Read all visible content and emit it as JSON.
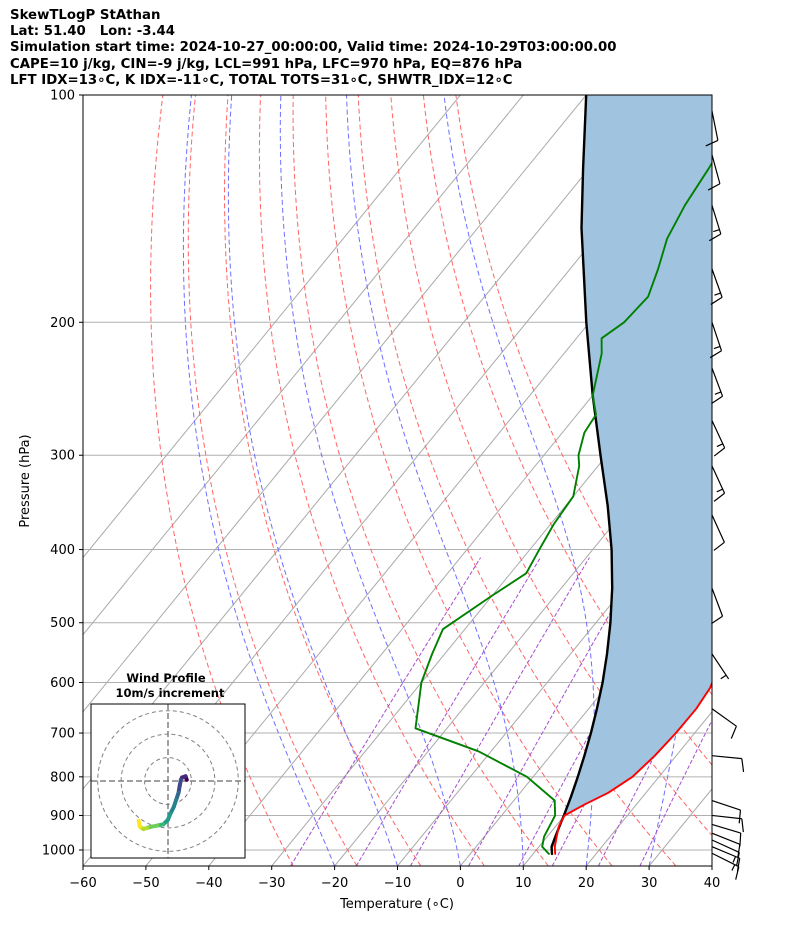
{
  "header": {
    "line1": "SkewTLogP StAthan",
    "line2": "Lat: 51.40   Lon: -3.44",
    "line3": "Simulation start time: 2024-10-27_00:00:00, Valid time: 2024-10-29T03:00:00.00",
    "line4": "CAPE=10 j/kg, CIN=-9 j/kg, LCL=991 hPa, LFC=970 hPa, EQ=876 hPa",
    "line5": "LFT IDX=13∘C, K IDX=-11∘C, TOTAL TOTS=31∘C, SHWTR_IDX=12∘C"
  },
  "chart_data": [
    {
      "type": "line",
      "name": "skew-t-log-p",
      "xlabel": "Temperature (∘C)",
      "ylabel": "Pressure (hPa)",
      "xlim": [
        -60,
        40
      ],
      "ylim": [
        1050,
        100
      ],
      "y_scale": "log",
      "grid": true,
      "x_ticks": [
        "−60",
        "−50",
        "−40",
        "−30",
        "−20",
        "−10",
        "0",
        "10",
        "20",
        "30",
        "40"
      ],
      "y_ticks": [
        "100",
        "200",
        "300",
        "400",
        "500",
        "600",
        "700",
        "800",
        "900",
        "1000"
      ],
      "temperature": [
        {
          "p": 1012,
          "t": 13.5
        },
        {
          "p": 990,
          "t": 12.5
        },
        {
          "p": 960,
          "t": 11.5
        },
        {
          "p": 930,
          "t": 10.5
        },
        {
          "p": 900,
          "t": 10.0
        },
        {
          "p": 870,
          "t": 11.8
        },
        {
          "p": 840,
          "t": 14.0
        },
        {
          "p": 800,
          "t": 15.8
        },
        {
          "p": 750,
          "t": 16.6
        },
        {
          "p": 700,
          "t": 17.0
        },
        {
          "p": 650,
          "t": 17.1
        },
        {
          "p": 610,
          "t": 16.6
        },
        {
          "p": 580,
          "t": 15.5
        },
        {
          "p": 540,
          "t": 13.0
        },
        {
          "p": 500,
          "t": 10.0
        },
        {
          "p": 450,
          "t": 6.5
        },
        {
          "p": 400,
          "t": 3.0
        },
        {
          "p": 350,
          "t": -1.0
        },
        {
          "p": 320,
          "t": -4.5
        },
        {
          "p": 300,
          "t": -7.5
        },
        {
          "p": 280,
          "t": -10.5
        },
        {
          "p": 260,
          "t": -13.5
        },
        {
          "p": 240,
          "t": -16.5
        },
        {
          "p": 220,
          "t": -20.5
        },
        {
          "p": 200,
          "t": -24.5
        },
        {
          "p": 185,
          "t": -28.5
        },
        {
          "p": 170,
          "t": -30.5
        },
        {
          "p": 150,
          "t": -33.5
        },
        {
          "p": 130,
          "t": -36.5
        },
        {
          "p": 115,
          "t": -39.0
        },
        {
          "p": 100,
          "t": -42.5
        }
      ],
      "dewpoint": [
        {
          "p": 1012,
          "t": 12.5
        },
        {
          "p": 990,
          "t": 10.5
        },
        {
          "p": 960,
          "t": 9.5
        },
        {
          "p": 930,
          "t": 9.0
        },
        {
          "p": 900,
          "t": 8.5
        },
        {
          "p": 860,
          "t": 6.5
        },
        {
          "p": 800,
          "t": -1.0
        },
        {
          "p": 740,
          "t": -12.0
        },
        {
          "p": 690,
          "t": -25.0
        },
        {
          "p": 600,
          "t": -30.0
        },
        {
          "p": 550,
          "t": -32.0
        },
        {
          "p": 510,
          "t": -33.5
        },
        {
          "p": 460,
          "t": -30.0
        },
        {
          "p": 430,
          "t": -27.5
        },
        {
          "p": 400,
          "t": -28.5
        },
        {
          "p": 370,
          "t": -29.5
        },
        {
          "p": 340,
          "t": -30.0
        },
        {
          "p": 310,
          "t": -33.0
        },
        {
          "p": 300,
          "t": -34.5
        },
        {
          "p": 280,
          "t": -36.5
        },
        {
          "p": 265,
          "t": -37.0
        },
        {
          "p": 250,
          "t": -40.0
        },
        {
          "p": 220,
          "t": -44.0
        },
        {
          "p": 210,
          "t": -46.0
        },
        {
          "p": 200,
          "t": -44.5
        },
        {
          "p": 185,
          "t": -44.0
        },
        {
          "p": 170,
          "t": -46.0
        },
        {
          "p": 155,
          "t": -48.5
        },
        {
          "p": 140,
          "t": -50.0
        },
        {
          "p": 125,
          "t": -51.0
        },
        {
          "p": 110,
          "t": -52.5
        },
        {
          "p": 100,
          "t": -53.0
        }
      ],
      "parcel": [
        {
          "p": 1012,
          "t": 13.0
        },
        {
          "p": 990,
          "t": 12.0
        },
        {
          "p": 960,
          "t": 11.3
        },
        {
          "p": 930,
          "t": 10.6
        },
        {
          "p": 900,
          "t": 9.9
        },
        {
          "p": 850,
          "t": 8.6
        },
        {
          "p": 800,
          "t": 7.1
        },
        {
          "p": 750,
          "t": 5.4
        },
        {
          "p": 700,
          "t": 3.5
        },
        {
          "p": 650,
          "t": 1.3
        },
        {
          "p": 600,
          "t": -1.2
        },
        {
          "p": 550,
          "t": -4.2
        },
        {
          "p": 500,
          "t": -7.7
        },
        {
          "p": 450,
          "t": -11.9
        },
        {
          "p": 400,
          "t": -17.0
        },
        {
          "p": 350,
          "t": -23.3
        },
        {
          "p": 300,
          "t": -31.0
        },
        {
          "p": 250,
          "t": -40.0
        },
        {
          "p": 200,
          "t": -50.5
        },
        {
          "p": 150,
          "t": -63.5
        },
        {
          "p": 125,
          "t": -71.0
        },
        {
          "p": 100,
          "t": -80.0
        }
      ],
      "dry_adiabats_theta_C": [
        -30,
        -20,
        -10,
        0,
        10,
        20,
        30,
        40,
        50,
        60
      ],
      "moist_adiabats_start_C": [
        -20,
        -10,
        0,
        10,
        20,
        30,
        40
      ],
      "mixing_ratio_lines_gkg": [
        0.4,
        1,
        2,
        4,
        7,
        10,
        16,
        24
      ],
      "isotherms_C": [
        -100,
        -90,
        -80,
        -70,
        -60,
        -50,
        -40,
        -30,
        -20,
        -10,
        0,
        10,
        20,
        30,
        40
      ],
      "wind_barbs": [
        {
          "p": 1010,
          "u": -12,
          "v": 6
        },
        {
          "p": 990,
          "u": -12,
          "v": 5
        },
        {
          "p": 970,
          "u": -11,
          "v": 5
        },
        {
          "p": 950,
          "u": -10,
          "v": 4
        },
        {
          "p": 925,
          "u": -10,
          "v": 3
        },
        {
          "p": 900,
          "u": -9,
          "v": 1
        },
        {
          "p": 860,
          "u": -9,
          "v": 3
        },
        {
          "p": 750,
          "u": -10,
          "v": 1
        },
        {
          "p": 650,
          "u": -7,
          "v": 5
        },
        {
          "p": 550,
          "u": -4,
          "v": 6
        },
        {
          "p": 450,
          "u": -3,
          "v": 8
        },
        {
          "p": 360,
          "u": -5,
          "v": 11
        },
        {
          "p": 310,
          "u": -6,
          "v": 13
        },
        {
          "p": 270,
          "u": -7,
          "v": 15
        },
        {
          "p": 230,
          "u": -6,
          "v": 16
        },
        {
          "p": 200,
          "u": -5,
          "v": 15
        },
        {
          "p": 170,
          "u": -5,
          "v": 14
        },
        {
          "p": 140,
          "u": -4,
          "v": 13
        },
        {
          "p": 120,
          "u": -3,
          "v": 11
        },
        {
          "p": 105,
          "u": -2,
          "v": 10
        }
      ],
      "colors": {
        "temperature": "#ff0000",
        "dewpoint": "#008000",
        "parcel": "#000000",
        "cape_fill": "#a0c4df",
        "dry_adiabat": "#ff6666",
        "moist_adiabat": "#6f6fff",
        "mixing_ratio": "#a64dcc",
        "isotherm": "#aaaaaa"
      }
    },
    {
      "type": "line",
      "name": "hodograph",
      "title": "Wind Profile",
      "subtitle": "10m/s increment",
      "rings_ms": [
        10,
        20,
        30
      ],
      "xlim": [
        -32,
        32
      ],
      "ylim": [
        -32,
        32
      ],
      "colormap": "viridis",
      "points": [
        {
          "u": -12.5,
          "v": -17.0
        },
        {
          "u": -12.0,
          "v": -19.5
        },
        {
          "u": -10.5,
          "v": -20.5
        },
        {
          "u": -9.0,
          "v": -20.0
        },
        {
          "u": -7.0,
          "v": -19.5
        },
        {
          "u": -4.5,
          "v": -19.0
        },
        {
          "u": -2.0,
          "v": -18.5
        },
        {
          "u": 0.0,
          "v": -16.5
        },
        {
          "u": 1.0,
          "v": -14.0
        },
        {
          "u": 2.5,
          "v": -11.0
        },
        {
          "u": 3.5,
          "v": -8.0
        },
        {
          "u": 4.5,
          "v": -5.0
        },
        {
          "u": 5.0,
          "v": -2.0
        },
        {
          "u": 5.5,
          "v": 0.5
        },
        {
          "u": 6.0,
          "v": 1.5
        },
        {
          "u": 7.5,
          "v": 2.0
        },
        {
          "u": 8.0,
          "v": 0.5
        }
      ]
    }
  ]
}
